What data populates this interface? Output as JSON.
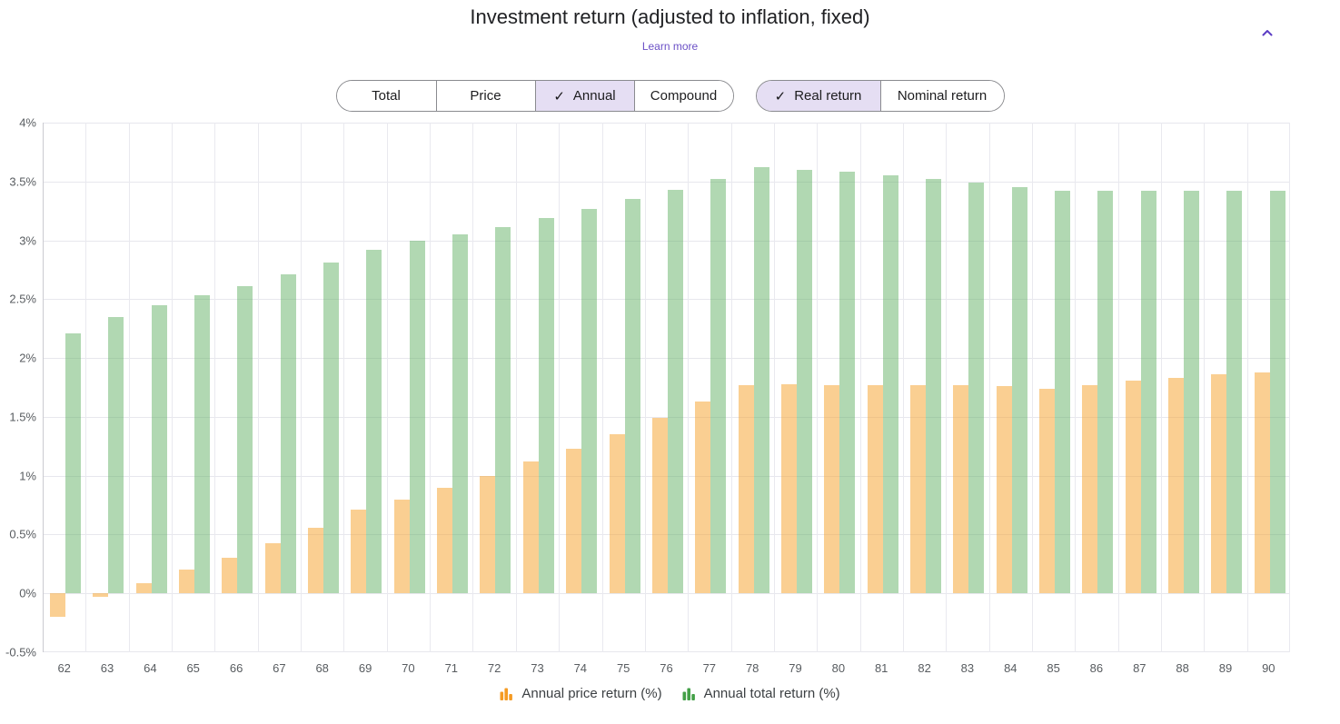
{
  "header": {
    "title": "Investment return (adjusted to inflation, fixed)",
    "learn_more": "Learn more",
    "collapse_icon": "chevron-up-icon",
    "accent_color": "#5b3cc4"
  },
  "controls": {
    "check_glyph": "✓",
    "selected_bg": "#e5def3",
    "metric_group": [
      {
        "label": "Total",
        "selected": false
      },
      {
        "label": "Price",
        "selected": false
      },
      {
        "label": "Annual",
        "selected": true
      },
      {
        "label": "Compound",
        "selected": false
      }
    ],
    "return_type_group": [
      {
        "label": "Real return",
        "selected": true
      },
      {
        "label": "Nominal return",
        "selected": false
      }
    ]
  },
  "chart_data": {
    "type": "bar",
    "title": "Investment return (adjusted to inflation, fixed)",
    "xlabel": "",
    "ylabel": "",
    "categories": [
      62,
      63,
      64,
      65,
      66,
      67,
      68,
      69,
      70,
      71,
      72,
      73,
      74,
      75,
      76,
      77,
      78,
      79,
      80,
      81,
      82,
      83,
      84,
      85,
      86,
      87,
      88,
      89,
      90
    ],
    "series": [
      {
        "name": "Annual price return (%)",
        "legend_color": "#f59b23",
        "bar_color": "rgba(246,167,56,0.55)",
        "values": [
          -0.2,
          -0.03,
          0.09,
          0.2,
          0.3,
          0.43,
          0.56,
          0.71,
          0.8,
          0.9,
          1.0,
          1.12,
          1.23,
          1.35,
          1.49,
          1.63,
          1.77,
          1.78,
          1.77,
          1.77,
          1.77,
          1.77,
          1.76,
          1.74,
          1.77,
          1.81,
          1.83,
          1.86,
          1.88
        ]
      },
      {
        "name": "Annual total return (%)",
        "legend_color": "#43a047",
        "bar_color": "rgba(99,177,101,0.5)",
        "values": [
          2.21,
          2.35,
          2.45,
          2.53,
          2.61,
          2.71,
          2.81,
          2.92,
          3.0,
          3.05,
          3.11,
          3.19,
          3.27,
          3.35,
          3.43,
          3.52,
          3.62,
          3.6,
          3.58,
          3.55,
          3.52,
          3.49,
          3.45,
          3.42,
          3.42,
          3.42,
          3.42,
          3.42,
          3.42
        ]
      }
    ],
    "ylim": [
      -0.5,
      4
    ],
    "ytick_step": 0.5,
    "ytick_labels": [
      "4%",
      "3.5%",
      "3%",
      "2.5%",
      "2%",
      "1.5%",
      "1%",
      "0.5%",
      "0%",
      "-0.5%"
    ],
    "grid": true,
    "legend_position": "bottom"
  }
}
